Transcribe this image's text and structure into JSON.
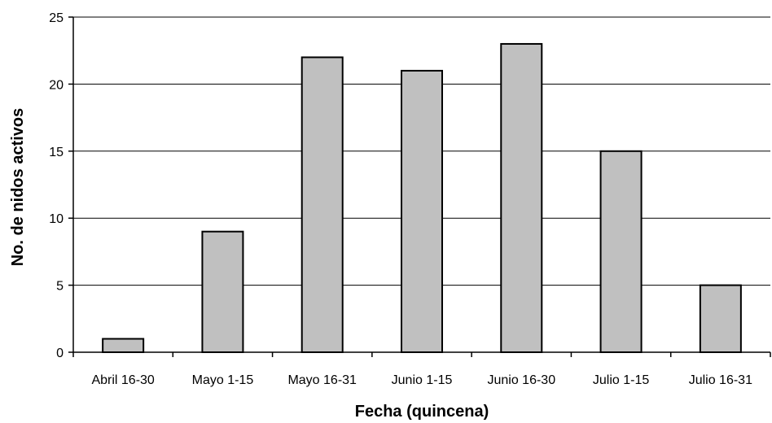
{
  "chart_data": {
    "type": "bar",
    "categories": [
      "Abril 16-30",
      "Mayo 1-15",
      "Mayo 16-31",
      "Junio 1-15",
      "Junio 16-30",
      "Julio 1-15",
      "Julio 16-31"
    ],
    "values": [
      1,
      9,
      22,
      21,
      23,
      15,
      5
    ],
    "xlabel": "Fecha (quincena)",
    "ylabel": "No. de nidos activos",
    "ylim": [
      0,
      25
    ],
    "yticks": [
      0,
      5,
      10,
      15,
      20,
      25
    ],
    "grid": true,
    "bar_color": "#c0c0c0"
  }
}
